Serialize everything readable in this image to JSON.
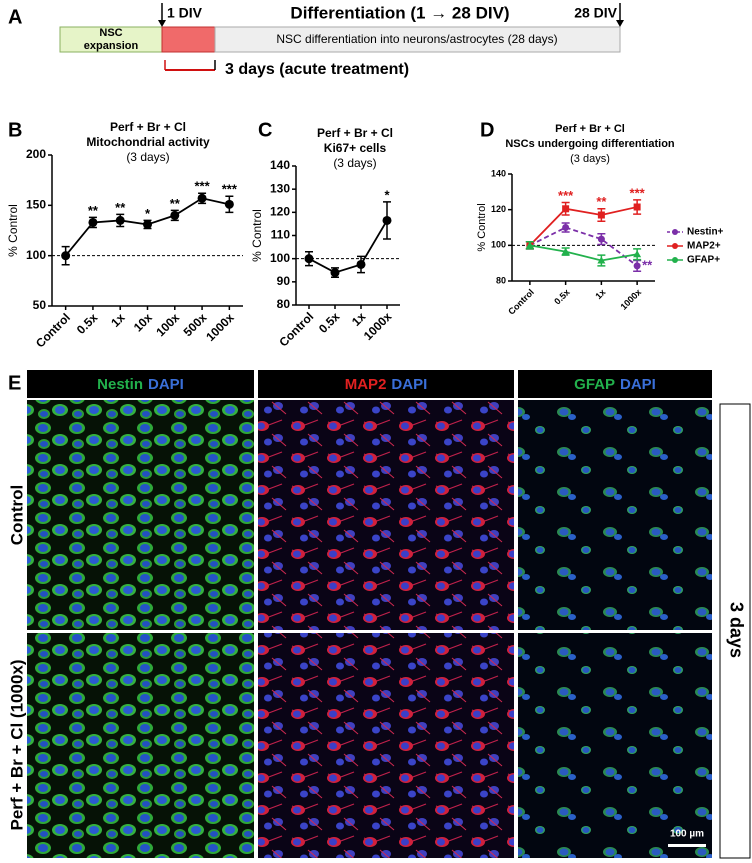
{
  "panel_a": {
    "label": "A",
    "start_marker": "1 DIV",
    "heading": "Differentiation (1 → 28 DIV)",
    "end_marker": "28 DIV",
    "expansion": [
      "NSC",
      "expansion"
    ],
    "differentiation": "NSC differentiation into neurons/astrocytes (28 days)",
    "treatment": "3 days (acute treatment)"
  },
  "chart_data": [
    {
      "type": "line",
      "label": "B",
      "title": [
        "Perf + Br + Cl",
        "Mitochondrial activity"
      ],
      "subtitle": "(3 days)",
      "ylabel": "% Control",
      "categories": [
        "Control",
        "0.5x",
        "1x",
        "10x",
        "100x",
        "500x",
        "1000x"
      ],
      "series": [
        {
          "color": "#000000",
          "values": [
            100,
            133,
            135,
            131,
            140,
            157,
            151
          ],
          "errors": [
            9,
            5,
            6,
            4,
            5,
            5,
            8
          ],
          "significance": [
            null,
            "**",
            "**",
            "*",
            "**",
            "***",
            "***"
          ]
        }
      ],
      "ylim": [
        50,
        200
      ],
      "yticks": [
        50,
        100,
        150,
        200
      ],
      "reference_line": 100
    },
    {
      "type": "line",
      "label": "C",
      "title": [
        "Perf + Br + Cl",
        "Ki67+ cells"
      ],
      "subtitle": "(3 days)",
      "ylabel": "% Control",
      "categories": [
        "Control",
        "0.5x",
        "1x",
        "1000x"
      ],
      "series": [
        {
          "color": "#000000",
          "values": [
            100,
            94,
            97.5,
            116.5
          ],
          "errors": [
            3,
            2,
            3.5,
            8
          ],
          "significance": [
            null,
            null,
            null,
            "*"
          ]
        }
      ],
      "ylim": [
        80,
        140
      ],
      "yticks": [
        80,
        90,
        100,
        110,
        120,
        130,
        140
      ],
      "reference_line": 100
    },
    {
      "type": "line",
      "label": "D",
      "title": [
        "Perf + Br + Cl",
        "NSCs undergoing differentiation"
      ],
      "subtitle": "(3 days)",
      "ylabel": "% Control",
      "categories": [
        "Control",
        "0.5x",
        "1x",
        "1000x"
      ],
      "series": [
        {
          "name": "Nestin+",
          "color": "#7b2fa8",
          "dashed": true,
          "values": [
            100,
            110,
            103.5,
            88.5
          ],
          "errors": [
            2,
            2.5,
            3,
            3
          ],
          "significance": [
            null,
            null,
            null,
            "**"
          ]
        },
        {
          "name": "MAP2+",
          "color": "#e02020",
          "values": [
            100,
            120.5,
            117,
            121.5
          ],
          "errors": [
            2,
            3.5,
            3.5,
            4
          ],
          "significance": [
            null,
            "***",
            "**",
            "***"
          ]
        },
        {
          "name": "GFAP+",
          "color": "#22b14c",
          "values": [
            100,
            96.5,
            91.5,
            95
          ],
          "errors": [
            2,
            2,
            3,
            3
          ],
          "significance": [
            null,
            null,
            null,
            null
          ]
        }
      ],
      "ylim": [
        80,
        140
      ],
      "yticks": [
        80,
        100,
        120,
        140
      ],
      "reference_line": 100,
      "legend": "right"
    }
  ],
  "panel_e": {
    "label": "E",
    "headers": [
      [
        {
          "text": "Nestin",
          "color": "#22b14c"
        },
        {
          "text": "DAPI",
          "color": "#3a6fd8"
        }
      ],
      [
        {
          "text": "MAP2",
          "color": "#e02020"
        },
        {
          "text": "DAPI",
          "color": "#3a6fd8"
        }
      ],
      [
        {
          "text": "GFAP",
          "color": "#22b14c"
        },
        {
          "text": "DAPI",
          "color": "#3a6fd8"
        }
      ]
    ],
    "rows": [
      "Control",
      "Perf + Br + Cl (1000x)"
    ],
    "side_label": "3 days",
    "scale_bar": "100 µm"
  }
}
